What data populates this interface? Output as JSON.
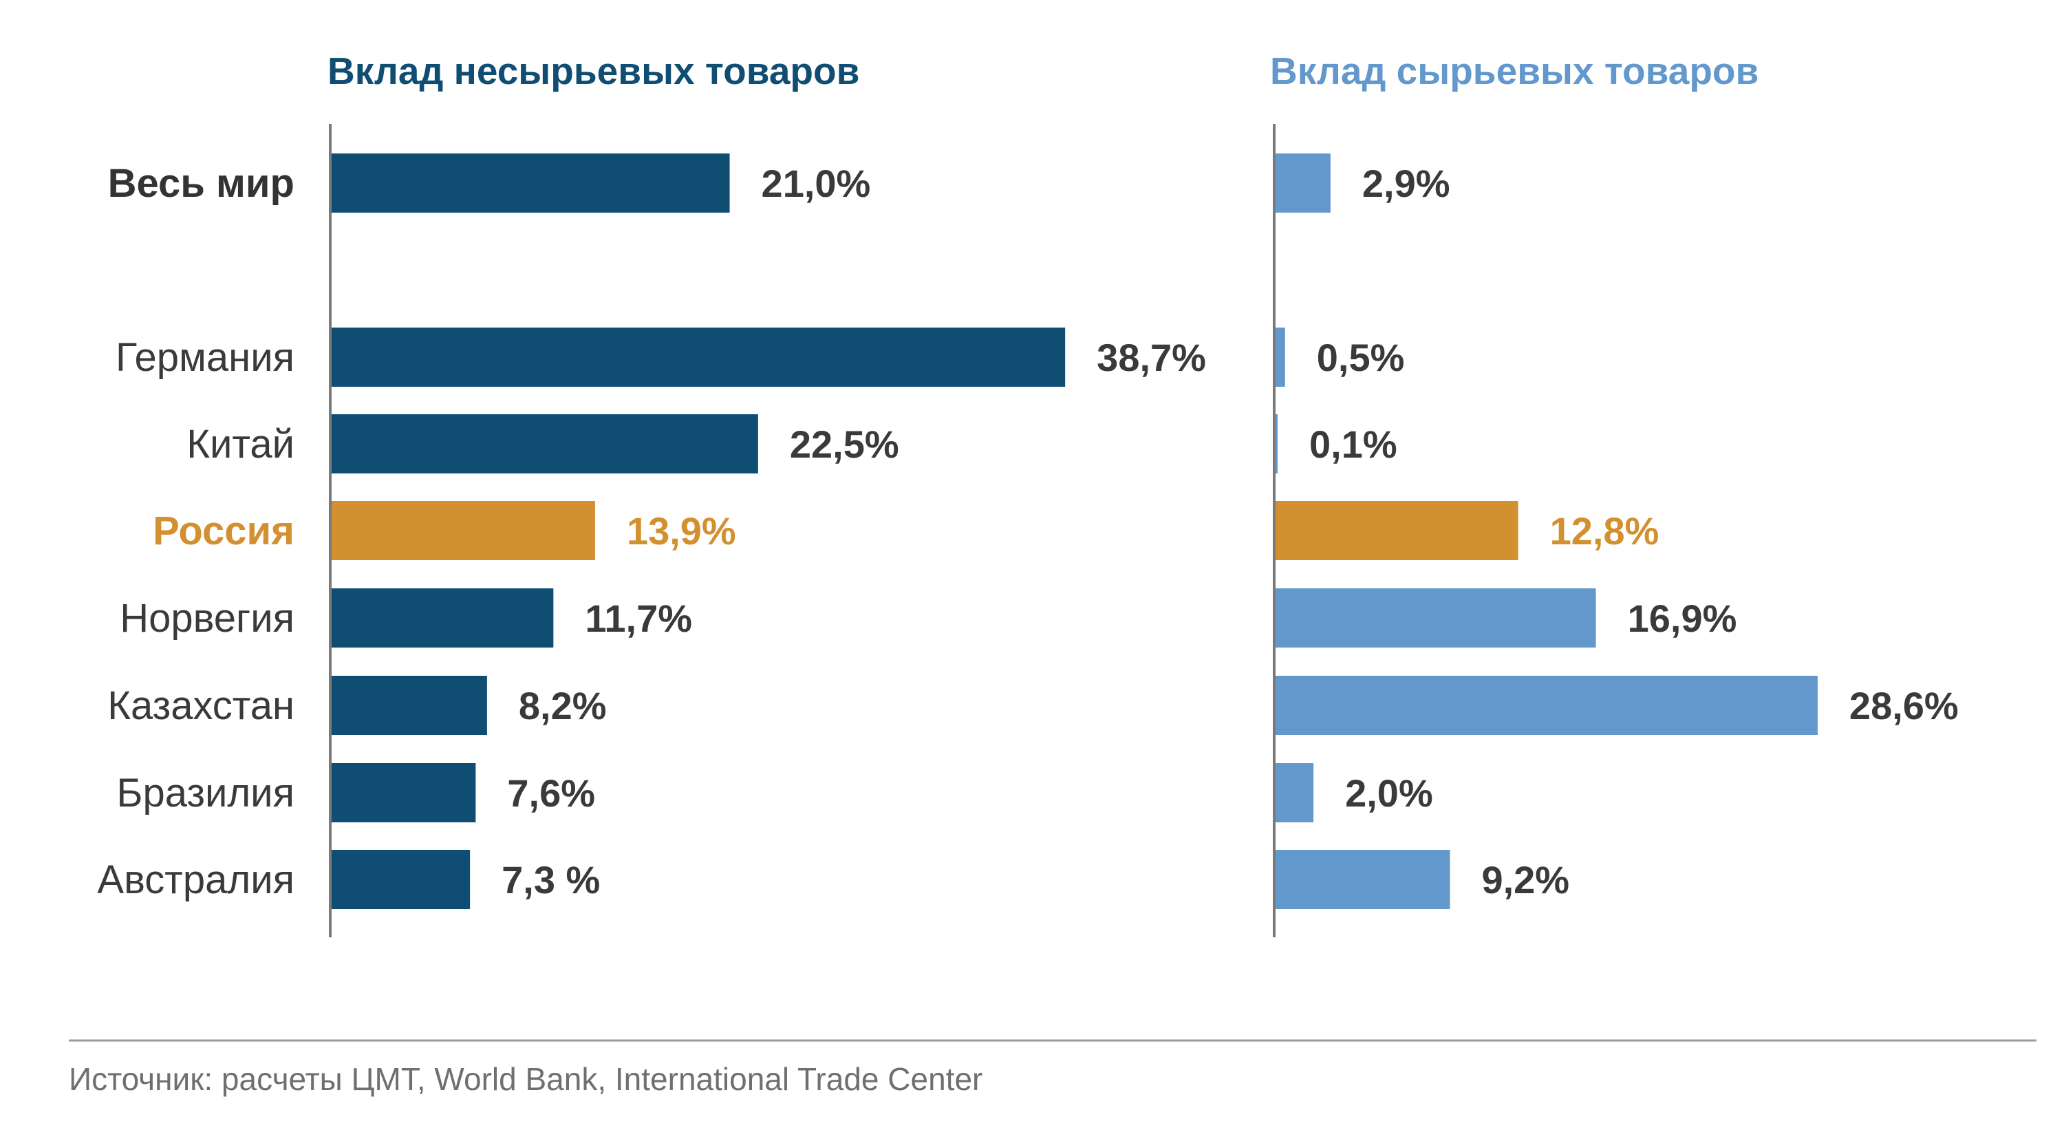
{
  "colors": {
    "nonraw": "#0f4d73",
    "raw": "#6298cc",
    "highlight": "#d3902f",
    "axis": "#7a7a7a",
    "text": "#3a3a3a",
    "world_label": "#333333",
    "source": "#6f6f6f"
  },
  "chart_data": [
    {
      "type": "bar",
      "orientation": "horizontal",
      "title": "Вклад несырьевых товаров",
      "categories": [
        "Весь мир",
        "Германия",
        "Китай",
        "Россия",
        "Норвегия",
        "Казахстан",
        "Бразилия",
        "Австралия"
      ],
      "values": [
        21.0,
        38.7,
        22.5,
        13.9,
        11.7,
        8.2,
        7.6,
        7.3
      ],
      "labels": [
        "21,0%",
        "38,7%",
        "22,5%",
        "13,9%",
        "11,7%",
        "8,2%",
        "7,6%",
        "7,3 %"
      ],
      "highlight": "Россия",
      "xlim": [
        0,
        40
      ],
      "unit": "%"
    },
    {
      "type": "bar",
      "orientation": "horizontal",
      "title": "Вклад сырьевых товаров",
      "categories": [
        "Весь мир",
        "Германия",
        "Китай",
        "Россия",
        "Норвегия",
        "Казахстан",
        "Бразилия",
        "Австралия"
      ],
      "values": [
        2.9,
        0.5,
        0.1,
        12.8,
        16.9,
        28.6,
        2.0,
        9.2
      ],
      "labels": [
        "2,9%",
        "0,5%",
        "0,1%",
        "12,8%",
        "16,9%",
        "28,6%",
        "2,0%",
        "9,2%"
      ],
      "highlight": "Россия",
      "xlim": [
        0,
        40
      ],
      "unit": "%"
    }
  ],
  "source": "Источник: расчеты ЦМТ, World Bank, International Trade Center"
}
